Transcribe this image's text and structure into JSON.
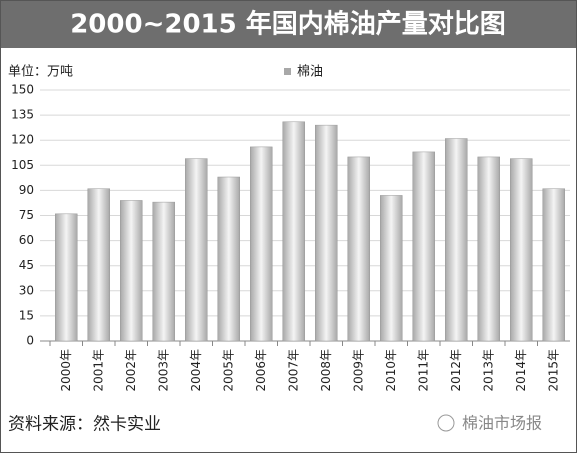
{
  "chart_data": {
    "type": "bar",
    "title": "2000~2015 年国内棉油产量对比图",
    "unit_label": "单位：万吨",
    "categories": [
      "2000年",
      "2001年",
      "2002年",
      "2003年",
      "2004年",
      "2005年",
      "2006年",
      "2007年",
      "2008年",
      "2009年",
      "2010年",
      "2011年",
      "2012年",
      "2013年",
      "2014年",
      "2015年"
    ],
    "series": [
      {
        "name": "棉油",
        "color": "#a8a8a8",
        "values": [
          76,
          91,
          84,
          83,
          109,
          98,
          116,
          131,
          129,
          110,
          87,
          113,
          121,
          110,
          109,
          91
        ]
      }
    ],
    "ylim": [
      0,
      150
    ],
    "yticks": [
      0,
      15,
      30,
      45,
      60,
      75,
      90,
      105,
      120,
      135,
      150
    ],
    "grid": true,
    "source": "资料来源：然卡实业",
    "watermark": "棉油市场报"
  }
}
